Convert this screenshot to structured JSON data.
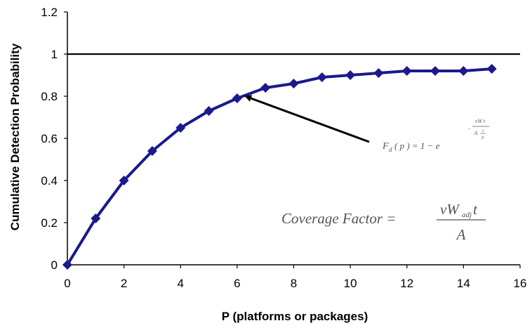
{
  "chart_data": {
    "type": "line",
    "xlabel": "P (platforms or packages)",
    "ylabel": "Cumulative Detection Probability",
    "xlim": [
      0,
      16
    ],
    "ylim": [
      0,
      1.2
    ],
    "x_ticks": [
      "0",
      "2",
      "4",
      "6",
      "8",
      "10",
      "12",
      "14",
      "16"
    ],
    "y_ticks": [
      "0",
      "0.2",
      "0.4",
      "0.6",
      "0.8",
      "1",
      "1.2"
    ],
    "grid": false,
    "series": [
      {
        "x": [
          0,
          1,
          2,
          3,
          4,
          5,
          6,
          7,
          8,
          9,
          10,
          11,
          12,
          13,
          14,
          15
        ],
        "values": [
          0,
          0.22,
          0.4,
          0.54,
          0.65,
          0.73,
          0.79,
          0.84,
          0.86,
          0.89,
          0.9,
          0.91,
          0.92,
          0.92,
          0.92,
          0.93
        ],
        "color": "#1a1a8c"
      }
    ],
    "reference_line": {
      "y": 1.0,
      "color": "#000000"
    },
    "annotations": {
      "equation_main": "F",
      "equation_sub": "d",
      "equation_body": "( p ) = 1 − e",
      "equation_exp_sign": "−",
      "equation_exp_num": "vW t",
      "equation_exp_den": "A",
      "equation_exp_den_frac_num": "1",
      "equation_exp_den_frac_den": "p",
      "coverage_label": "Coverage Factor =",
      "coverage_num": "vW",
      "coverage_num_sub": "adj",
      "coverage_num_tail": "t",
      "coverage_den": "A",
      "arrow_target_x": 7
    }
  }
}
